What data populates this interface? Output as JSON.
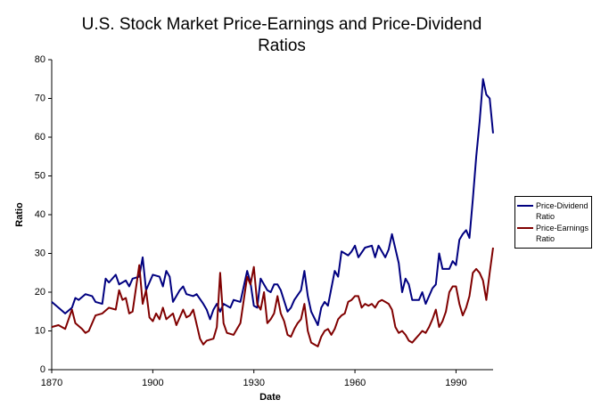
{
  "chart_data": {
    "type": "line",
    "title": "U.S. Stock Market Price-Earnings and Price-Dividend Ratios",
    "x_label": "Date",
    "y_label": "Ratio",
    "xlim": [
      1870,
      2001
    ],
    "xticks": [
      1870,
      1900,
      1930,
      1960,
      1990
    ],
    "ylim": [
      0,
      80
    ],
    "yticks": [
      0,
      10,
      20,
      30,
      40,
      50,
      60,
      70,
      80
    ],
    "grid": false,
    "legend": "right",
    "series": [
      {
        "name": "Price-Dividend Ratio",
        "color": "#000080",
        "x": [
          1870,
          1872,
          1874,
          1876,
          1877,
          1878,
          1880,
          1882,
          1883,
          1885,
          1886,
          1887,
          1889,
          1890,
          1892,
          1893,
          1894,
          1896,
          1897,
          1898,
          1900,
          1902,
          1903,
          1904,
          1905,
          1906,
          1908,
          1909,
          1910,
          1912,
          1913,
          1915,
          1916,
          1917,
          1918,
          1919,
          1920,
          1921,
          1923,
          1924,
          1926,
          1928,
          1929,
          1930,
          1931,
          1932,
          1934,
          1935,
          1936,
          1937,
          1938,
          1940,
          1941,
          1942,
          1944,
          1945,
          1946,
          1947,
          1949,
          1950,
          1951,
          1952,
          1954,
          1955,
          1956,
          1958,
          1959,
          1960,
          1961,
          1963,
          1965,
          1966,
          1967,
          1969,
          1970,
          1971,
          1973,
          1974,
          1975,
          1976,
          1977,
          1979,
          1980,
          1981,
          1983,
          1984,
          1985,
          1986,
          1988,
          1989,
          1990,
          1991,
          1992,
          1993,
          1994,
          1995,
          1996,
          1997,
          1998,
          1999,
          2000,
          2001
        ],
        "values": [
          17.5,
          16,
          14.5,
          16,
          18.5,
          18,
          19.5,
          19,
          17.5,
          17,
          23.5,
          22.5,
          24.5,
          22,
          23,
          21.5,
          23.5,
          24,
          29,
          20.5,
          24.5,
          24,
          21.5,
          25.5,
          24,
          17.5,
          20.5,
          21.5,
          19.5,
          19,
          19.5,
          17,
          15.5,
          13,
          15.5,
          17,
          15,
          17,
          16,
          18,
          17.5,
          25.5,
          22.5,
          16.5,
          16,
          23.5,
          20.5,
          20,
          22,
          22,
          20.5,
          15,
          16,
          18,
          20.5,
          25.5,
          19,
          15,
          11.5,
          16,
          17.5,
          16.5,
          25.5,
          24,
          30.5,
          29.5,
          30.5,
          32,
          29,
          31.5,
          32,
          29,
          32,
          29,
          31,
          35,
          27.5,
          20,
          23.5,
          22,
          18,
          18,
          20,
          17,
          21,
          22,
          30,
          26,
          26,
          28,
          27,
          33.5,
          35,
          36,
          34,
          44,
          55,
          64,
          75,
          71,
          70,
          61
        ]
      },
      {
        "name": "Price-Earnings Ratio",
        "color": "#800000",
        "x": [
          1870,
          1872,
          1874,
          1876,
          1877,
          1879,
          1880,
          1881,
          1883,
          1885,
          1887,
          1889,
          1890,
          1891,
          1892,
          1893,
          1894,
          1896,
          1897,
          1898,
          1899,
          1900,
          1901,
          1902,
          1903,
          1904,
          1906,
          1907,
          1909,
          1910,
          1911,
          1912,
          1914,
          1915,
          1916,
          1918,
          1919,
          1920,
          1921,
          1922,
          1924,
          1925,
          1926,
          1927,
          1928,
          1929,
          1930,
          1931,
          1932,
          1933,
          1934,
          1935,
          1936,
          1937,
          1938,
          1939,
          1940,
          1941,
          1942,
          1943,
          1944,
          1945,
          1946,
          1947,
          1948,
          1949,
          1950,
          1951,
          1952,
          1953,
          1954,
          1955,
          1956,
          1957,
          1958,
          1959,
          1960,
          1961,
          1962,
          1963,
          1964,
          1965,
          1966,
          1967,
          1968,
          1969,
          1970,
          1971,
          1972,
          1973,
          1974,
          1975,
          1976,
          1977,
          1978,
          1979,
          1980,
          1981,
          1982,
          1983,
          1984,
          1985,
          1986,
          1987,
          1988,
          1989,
          1990,
          1991,
          1992,
          1993,
          1994,
          1995,
          1996,
          1997,
          1998,
          1999,
          2000,
          2001
        ],
        "values": [
          11,
          11.5,
          10.5,
          15.5,
          12,
          10.5,
          9.5,
          10,
          14,
          14.5,
          16,
          15.5,
          20.5,
          18,
          18.5,
          14.5,
          15,
          27,
          17,
          20.5,
          13.5,
          12.5,
          14.5,
          13,
          16,
          13,
          14.5,
          11.5,
          15.5,
          13.5,
          14,
          15.5,
          8,
          6.5,
          7.5,
          8,
          11,
          25,
          12,
          9.5,
          9,
          10.5,
          12,
          18,
          24,
          22,
          26.5,
          17,
          15.5,
          20,
          12,
          13,
          14.5,
          19,
          14.5,
          12.5,
          9,
          8.5,
          10.5,
          12,
          13,
          17,
          10,
          7,
          6.5,
          6,
          8.5,
          10,
          10.5,
          9,
          10.5,
          13,
          14,
          14.5,
          17.5,
          18,
          19,
          19,
          16,
          17,
          16.5,
          17,
          16,
          17.5,
          18,
          17.5,
          17,
          15.5,
          11,
          9.5,
          10,
          9,
          7.5,
          7,
          8,
          9,
          10,
          9.5,
          11,
          13,
          15.5,
          11,
          12.5,
          15,
          20,
          21.5,
          21.5,
          17,
          14,
          16,
          19,
          25,
          26,
          25,
          23,
          18,
          25,
          31.5
        ]
      }
    ]
  }
}
